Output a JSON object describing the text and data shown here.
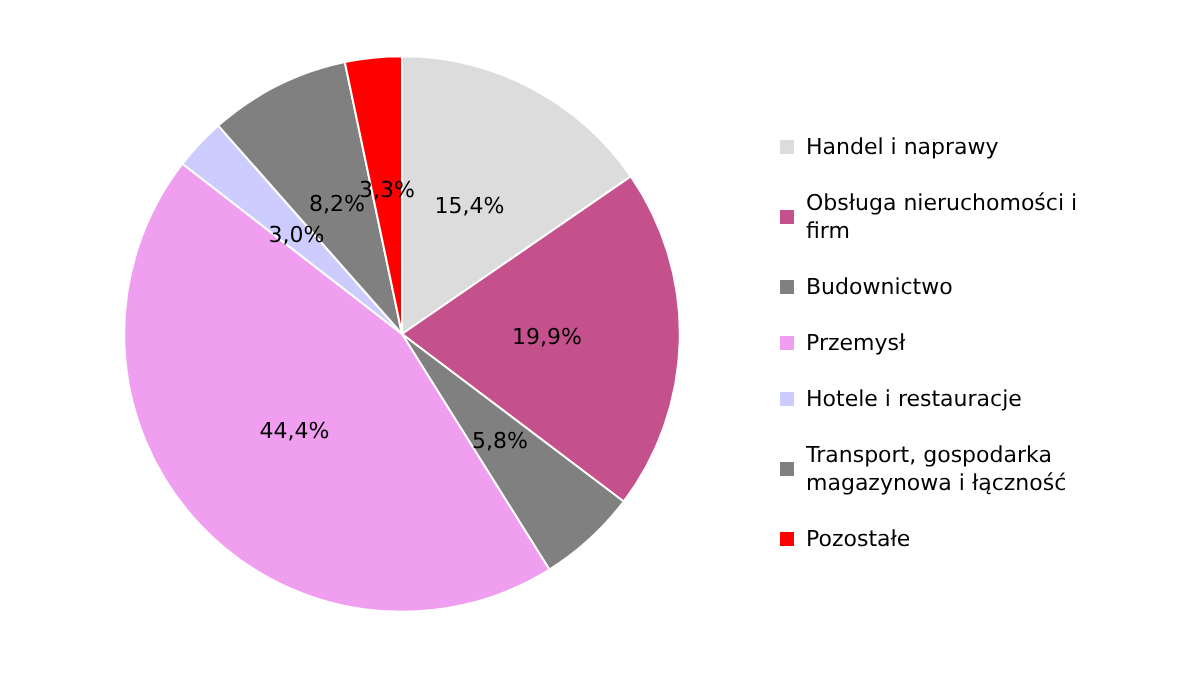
{
  "chart_data": {
    "type": "pie",
    "categories": [
      "Handel i naprawy",
      "Obsługa nieruchomości i firm",
      "Budownictwo",
      "Przemysł",
      "Hotele i restauracje",
      "Transport, gospodarka magazynowa i łączność",
      "Pozostałe"
    ],
    "values": [
      15.4,
      19.9,
      5.8,
      44.4,
      3.0,
      8.2,
      3.3
    ],
    "value_labels": [
      "15,4%",
      "19,9%",
      "5,8%",
      "44,4%",
      "3,0%",
      "8,2%",
      "3,3%"
    ],
    "colors": [
      "#dcdcdc",
      "#c4508c",
      "#808080",
      "#f09ef0",
      "#ccccff",
      "#808080",
      "#ff0000"
    ],
    "legend": "right"
  }
}
